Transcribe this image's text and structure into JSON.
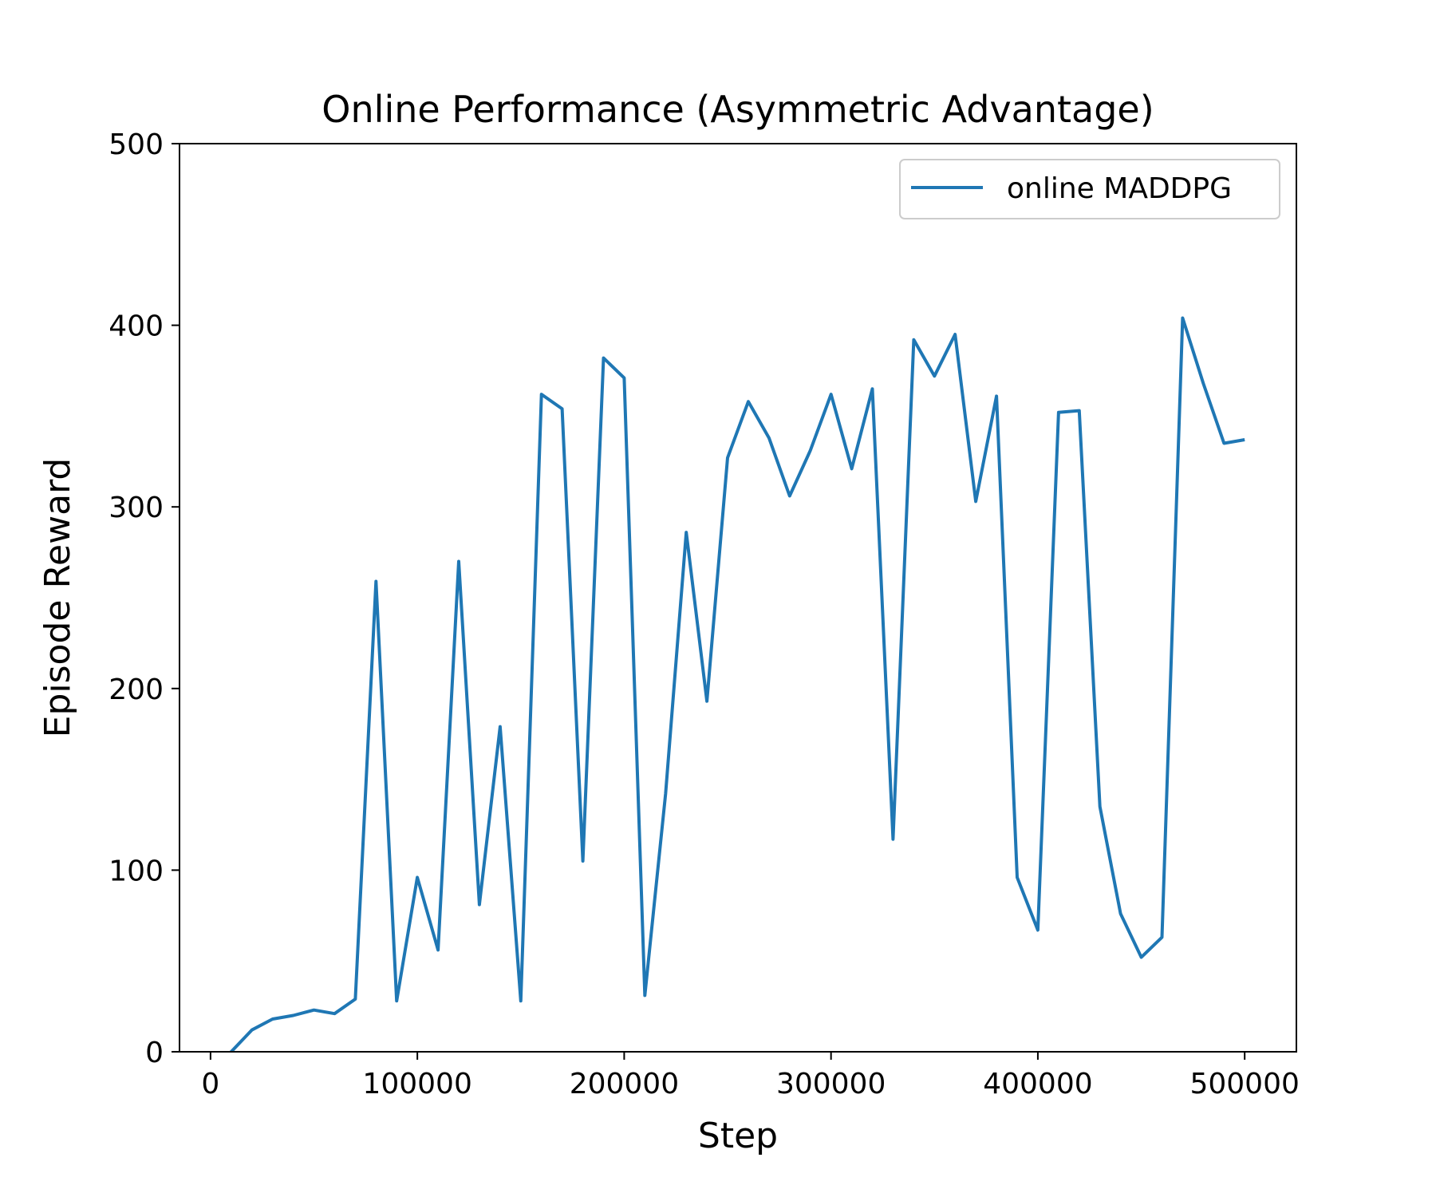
{
  "chart_data": {
    "type": "line",
    "title": "Online Performance (Asymmetric Advantage)",
    "xlabel": "Step",
    "ylabel": "Episode Reward",
    "xlim": [
      -15000,
      525000
    ],
    "ylim": [
      0,
      500
    ],
    "xticks": [
      0,
      100000,
      200000,
      300000,
      400000,
      500000
    ],
    "yticks": [
      0,
      100,
      200,
      300,
      400,
      500
    ],
    "grid": false,
    "legend_position": "top-right",
    "series": [
      {
        "name": "online MADDPG",
        "color": "#1f77b4",
        "x": [
          0,
          10000,
          20000,
          30000,
          40000,
          50000,
          60000,
          70000,
          80000,
          90000,
          100000,
          110000,
          120000,
          130000,
          140000,
          150000,
          160000,
          170000,
          180000,
          190000,
          200000,
          210000,
          220000,
          230000,
          240000,
          250000,
          260000,
          270000,
          280000,
          290000,
          300000,
          310000,
          320000,
          330000,
          340000,
          350000,
          360000,
          370000,
          380000,
          390000,
          400000,
          410000,
          420000,
          430000,
          440000,
          450000,
          460000,
          470000,
          480000,
          490000,
          500000
        ],
        "y": [
          -8,
          0,
          12,
          18,
          20,
          23,
          21,
          29,
          259,
          28,
          96,
          56,
          270,
          81,
          179,
          28,
          362,
          354,
          105,
          382,
          371,
          31,
          142,
          286,
          193,
          327,
          358,
          338,
          306,
          331,
          362,
          321,
          365,
          117,
          392,
          372,
          395,
          303,
          361,
          96,
          67,
          352,
          353,
          135,
          76,
          52,
          63,
          404,
          368,
          335,
          337
        ]
      }
    ]
  }
}
